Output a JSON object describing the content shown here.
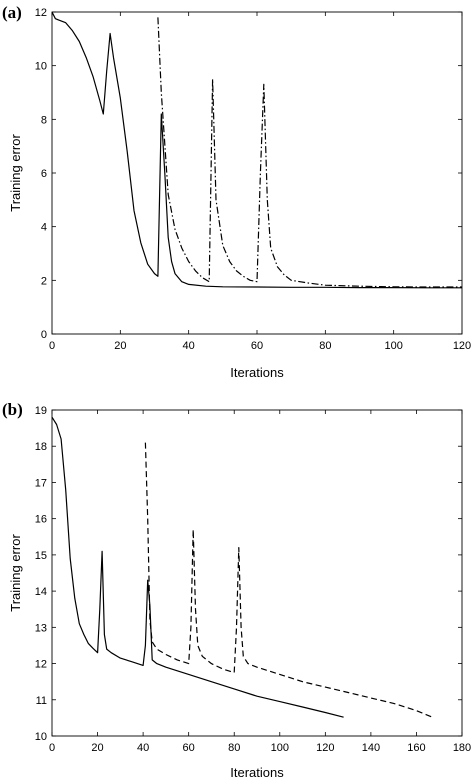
{
  "chart_data": [
    {
      "panel_label": "(a)",
      "type": "line",
      "xlabel": "Iterations",
      "ylabel": "Training error",
      "xlim": [
        0,
        120
      ],
      "ylim": [
        0,
        12
      ],
      "xticks": [
        0,
        20,
        40,
        60,
        80,
        100,
        120
      ],
      "yticks": [
        0,
        2,
        4,
        6,
        8,
        10,
        12
      ],
      "grid": false,
      "series": [
        {
          "style": "solid",
          "x": [
            0,
            1,
            2,
            4,
            6,
            8,
            10,
            12,
            14,
            15,
            16,
            17,
            18,
            20,
            22,
            24,
            26,
            28,
            30,
            31,
            32,
            33,
            34,
            35,
            36,
            38,
            40,
            45,
            50,
            60,
            70,
            80,
            90,
            100,
            110,
            120
          ],
          "y": [
            12,
            11.75,
            11.7,
            11.6,
            11.3,
            10.9,
            10.3,
            9.6,
            8.7,
            8.2,
            9.8,
            11.2,
            10.3,
            8.8,
            6.8,
            4.6,
            3.4,
            2.6,
            2.25,
            2.15,
            8.2,
            6.0,
            3.6,
            2.7,
            2.25,
            1.95,
            1.85,
            1.78,
            1.76,
            1.75,
            1.74,
            1.74,
            1.73,
            1.73,
            1.72,
            1.72
          ]
        },
        {
          "style": "dash-dot",
          "x": [
            31,
            32,
            34,
            36,
            38,
            40,
            42,
            44,
            46,
            47,
            48,
            50,
            52,
            54,
            56,
            58,
            60,
            61,
            62,
            63,
            64,
            66,
            68,
            70,
            75,
            80,
            90,
            100,
            110,
            120
          ],
          "y": [
            11.8,
            9.0,
            5.2,
            3.9,
            3.2,
            2.7,
            2.35,
            2.1,
            1.95,
            9.5,
            5.0,
            3.3,
            2.7,
            2.35,
            2.15,
            2.0,
            1.95,
            6.0,
            9.3,
            5.0,
            3.2,
            2.5,
            2.2,
            2.0,
            1.9,
            1.82,
            1.78,
            1.76,
            1.75,
            1.75
          ]
        }
      ]
    },
    {
      "panel_label": "(b)",
      "type": "line",
      "xlabel": "Iterations",
      "ylabel": "Training error",
      "xlim": [
        0,
        180
      ],
      "ylim": [
        10,
        19
      ],
      "xticks": [
        0,
        20,
        40,
        60,
        80,
        100,
        120,
        140,
        160,
        180
      ],
      "yticks": [
        10,
        11,
        12,
        13,
        14,
        15,
        16,
        17,
        18,
        19
      ],
      "grid": false,
      "series": [
        {
          "style": "solid",
          "x": [
            0,
            2,
            4,
            6,
            8,
            10,
            12,
            14,
            16,
            18,
            20,
            21,
            22,
            23,
            24,
            26,
            30,
            35,
            40,
            41,
            42,
            43,
            44,
            46,
            50,
            60,
            70,
            80,
            90,
            100,
            110,
            120,
            128
          ],
          "y": [
            18.8,
            18.6,
            18.2,
            16.8,
            14.9,
            13.8,
            13.1,
            12.8,
            12.55,
            12.42,
            12.3,
            13.5,
            15.1,
            12.8,
            12.4,
            12.3,
            12.15,
            12.05,
            11.95,
            12.5,
            14.3,
            13.6,
            12.1,
            12.0,
            11.9,
            11.7,
            11.5,
            11.3,
            11.1,
            10.95,
            10.8,
            10.65,
            10.52
          ]
        },
        {
          "style": "dashed",
          "x": [
            41,
            42,
            43,
            44,
            46,
            50,
            55,
            60,
            61,
            62,
            63,
            64,
            66,
            70,
            75,
            80,
            81,
            82,
            83,
            84,
            86,
            90,
            100,
            110,
            120,
            130,
            140,
            150,
            160,
            167
          ],
          "y": [
            18.1,
            16.0,
            13.2,
            12.6,
            12.4,
            12.25,
            12.1,
            12.0,
            13.0,
            15.7,
            13.5,
            12.5,
            12.2,
            12.0,
            11.85,
            11.75,
            13.0,
            15.2,
            13.0,
            12.2,
            12.0,
            11.9,
            11.7,
            11.5,
            11.35,
            11.2,
            11.05,
            10.9,
            10.7,
            10.52
          ]
        }
      ]
    }
  ]
}
